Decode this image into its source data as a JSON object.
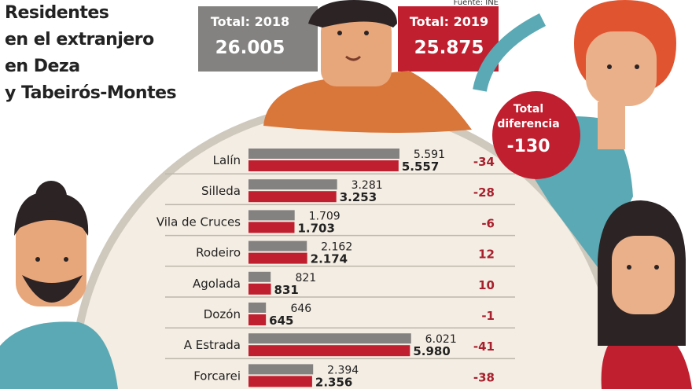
{
  "title_lines": [
    "Residentes",
    "en el extranjero",
    "en Deza",
    "y Tabeirós-Montes"
  ],
  "source": "Fuente: INE",
  "totals": {
    "label_2018": "Total: 2018",
    "value_2018": "26.005",
    "label_2019": "Total: 2019",
    "value_2019": "25.875",
    "diff_label_1": "Total",
    "diff_label_2": "diferencia",
    "diff_value": "-130"
  },
  "colors": {
    "y2018": "#848281",
    "y2019": "#c01f2f",
    "circle": "#f4ede3",
    "circle_border": "#cfc8bd"
  },
  "chart_data": {
    "type": "bar",
    "orientation": "horizontal",
    "categories": [
      "Lalín",
      "Silleda",
      "Vila de Cruces",
      "Rodeiro",
      "Agolada",
      "Dozón",
      "A Estrada",
      "Forcarei"
    ],
    "series": [
      {
        "values": [
          5591,
          3281,
          1709,
          2162,
          821,
          646,
          6021,
          2394
        ],
        "labels": [
          "5.591",
          "3.281",
          "1.709",
          "2.162",
          "821",
          "646",
          "6.021",
          "2.394"
        ]
      },
      {
        "values": [
          5557,
          3253,
          1703,
          2174,
          831,
          645,
          5980,
          2356
        ],
        "labels": [
          "5.557",
          "3.253",
          "1.703",
          "2.174",
          "831",
          "645",
          "5.980",
          "2.356"
        ]
      }
    ],
    "differences": [
      "-34",
      "-28",
      "-6",
      "12",
      "10",
      "-1",
      "-41",
      "-38"
    ]
  }
}
